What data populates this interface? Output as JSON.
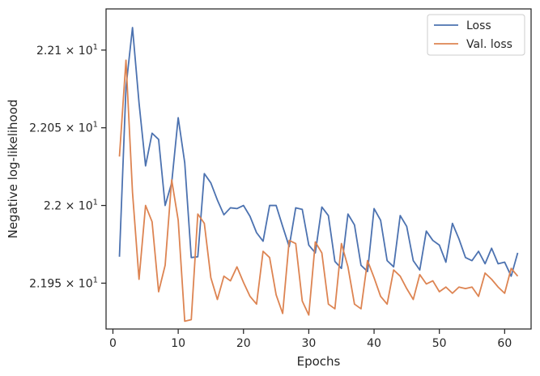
{
  "chart_data": {
    "type": "line",
    "xlabel": "Epochs",
    "ylabel": "Negative log-likelihood",
    "xlim": [
      -1.05,
      64.05
    ],
    "ylim": [
      21.9205,
      22.1265
    ],
    "x_ticks": [
      0,
      10,
      20,
      30,
      40,
      50,
      60
    ],
    "y_ticks": [
      {
        "value": 21.95,
        "label": "2.195 × 10^1"
      },
      {
        "value": 22.0,
        "label": "2.2 × 10^1"
      },
      {
        "value": 22.05,
        "label": "2.205 × 10^1"
      },
      {
        "value": 22.1,
        "label": "2.21 × 10^1"
      }
    ],
    "grid": false,
    "legend": "top-right",
    "x": [
      1,
      2,
      3,
      4,
      5,
      6,
      7,
      8,
      9,
      10,
      11,
      12,
      13,
      14,
      15,
      16,
      17,
      18,
      19,
      20,
      21,
      22,
      23,
      24,
      25,
      26,
      27,
      28,
      29,
      30,
      31,
      32,
      33,
      34,
      35,
      36,
      37,
      38,
      39,
      40,
      41,
      42,
      43,
      44,
      45,
      46,
      47,
      48,
      49,
      50,
      51,
      52,
      53,
      54,
      55,
      56,
      57,
      58,
      59,
      60,
      61,
      62
    ],
    "series": [
      {
        "name": "Loss",
        "color": "#4c72b0",
        "values": [
          21.967,
          22.076,
          22.1145,
          22.066,
          22.0255,
          22.0465,
          22.0425,
          22.0,
          22.0145,
          22.0565,
          22.0275,
          21.9665,
          21.967,
          22.0205,
          22.0145,
          22.0035,
          21.994,
          21.9985,
          21.998,
          22.0,
          21.993,
          21.9825,
          21.977,
          22.0,
          22.0,
          21.9865,
          21.9735,
          21.9985,
          21.9975,
          21.9745,
          21.9695,
          21.999,
          21.9935,
          21.964,
          21.9595,
          21.9945,
          21.9875,
          21.9615,
          21.9575,
          21.998,
          21.9905,
          21.9645,
          21.9605,
          21.9935,
          21.9865,
          21.9645,
          21.9585,
          21.9835,
          21.9775,
          21.9745,
          21.9635,
          21.9885,
          21.9785,
          21.9665,
          21.9645,
          21.9705,
          21.9625,
          21.9725,
          21.9625,
          21.9635,
          21.9545,
          21.9695
        ]
      },
      {
        "name": "Val. loss",
        "color": "#dd8452",
        "values": [
          22.0315,
          22.0935,
          22.0085,
          21.9525,
          22.0,
          21.9895,
          21.9445,
          21.9615,
          22.0165,
          21.9905,
          21.9255,
          21.9265,
          21.9945,
          21.9885,
          21.9535,
          21.9395,
          21.9545,
          21.9515,
          21.9605,
          21.9505,
          21.9415,
          21.9365,
          21.9705,
          21.9665,
          21.9425,
          21.9305,
          21.9775,
          21.9755,
          21.9385,
          21.9295,
          21.9765,
          21.9695,
          21.9365,
          21.9335,
          21.9755,
          21.9605,
          21.9365,
          21.9335,
          21.9645,
          21.9535,
          21.9415,
          21.9365,
          21.9585,
          21.9545,
          21.9465,
          21.9395,
          21.9555,
          21.9495,
          21.9515,
          21.9445,
          21.9475,
          21.9435,
          21.9475,
          21.9465,
          21.9475,
          21.9415,
          21.9565,
          21.9525,
          21.9475,
          21.9435,
          21.9595,
          21.9545
        ]
      }
    ]
  }
}
